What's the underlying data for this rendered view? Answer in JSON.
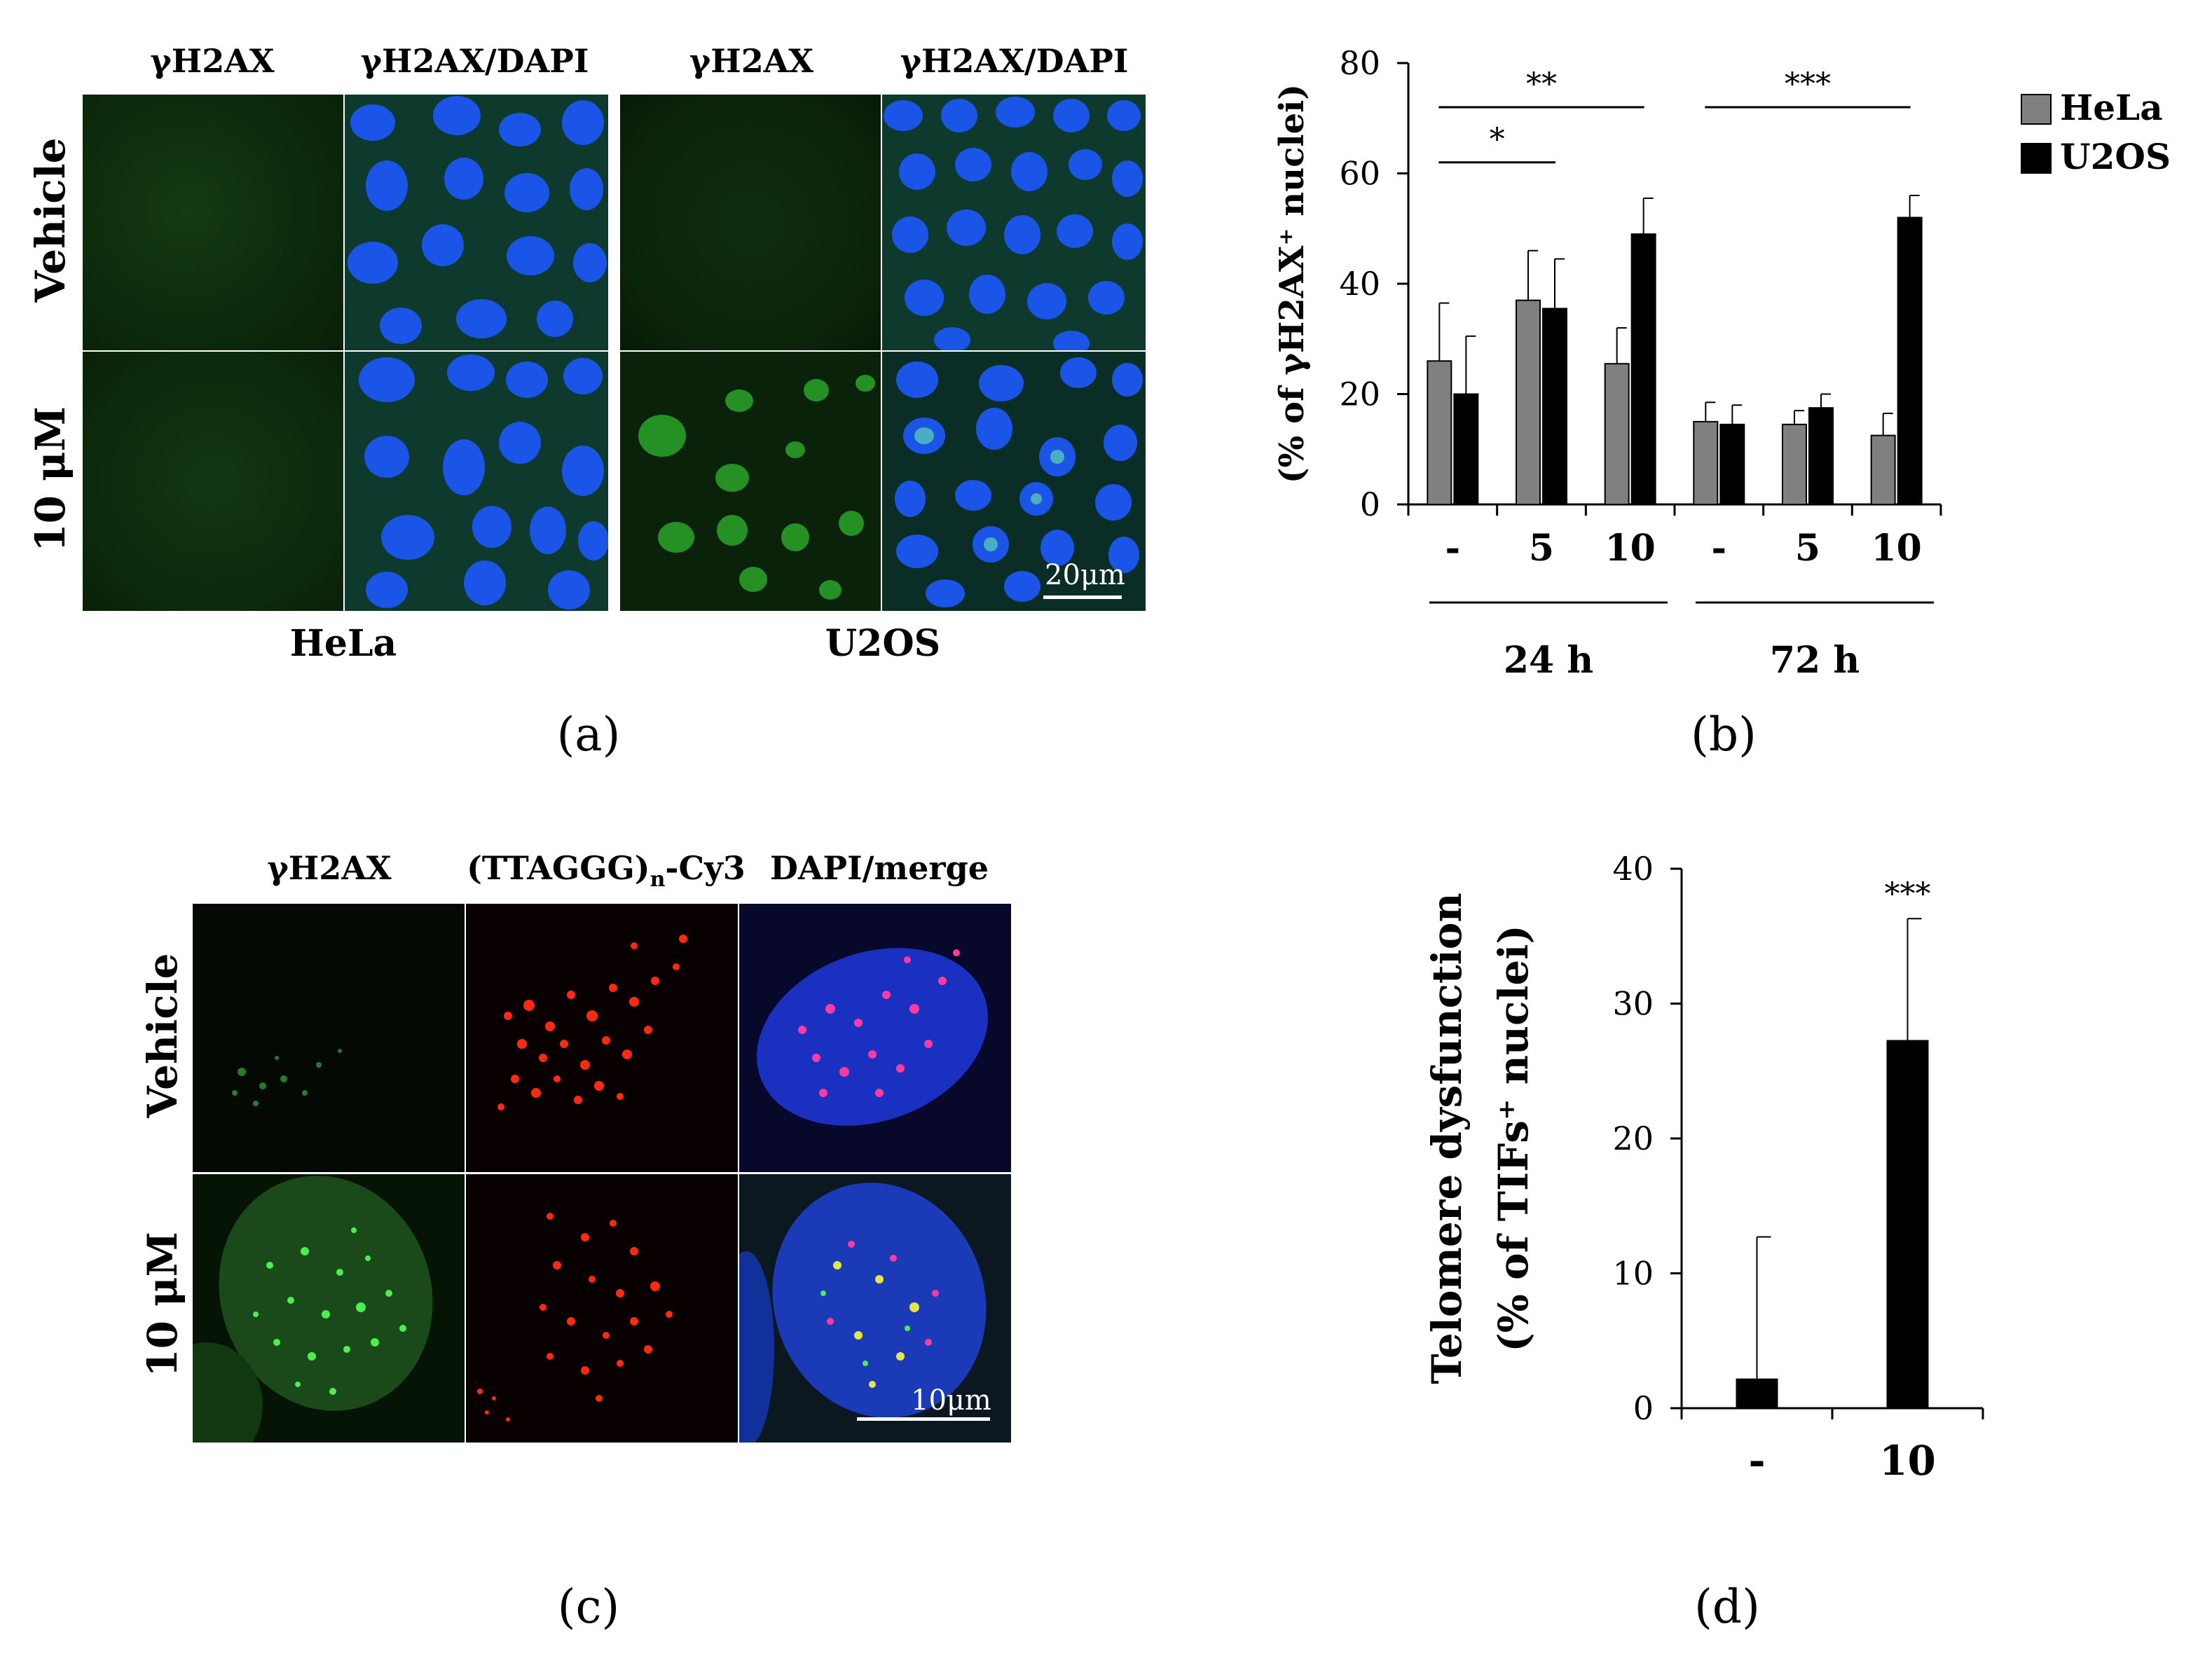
{
  "panel_a": {
    "col_headers": [
      "γH2AX",
      "γH2AX/DAPI",
      "γH2AX",
      "γH2AX/DAPI"
    ],
    "row_labels": [
      "Vehicle",
      "10 μM"
    ],
    "group_labels": [
      "HeLa",
      "U2OS"
    ],
    "scale_bar": "20μm",
    "caption": "(a)"
  },
  "panel_b": {
    "caption": "(b)",
    "timepoints": [
      "24 h",
      "72 h"
    ]
  },
  "panel_c": {
    "col_headers": [
      "γH2AX",
      "(TTAGGG)",
      "n",
      "-Cy3",
      "DAPI/merge"
    ],
    "row_labels": [
      "Vehicle",
      "10 μM"
    ],
    "scale_bar": "10μm",
    "caption": "(c)"
  },
  "panel_d": {
    "caption": "(d)"
  },
  "chart_data": [
    {
      "type": "bar",
      "ylabel": "(% of γH2AX⁺ nuclei)",
      "ylim": [
        0,
        80
      ],
      "yticks": [
        0,
        20,
        40,
        60,
        80
      ],
      "categories": [
        "-",
        "5",
        "10",
        "-",
        "5",
        "10"
      ],
      "groups": [
        "24 h",
        "72 h"
      ],
      "series": [
        {
          "name": "HeLa",
          "color": "#808080",
          "values": [
            26,
            37,
            25.5,
            15,
            14.5,
            12.5
          ],
          "errors": [
            10.5,
            9,
            6.5,
            3.5,
            2.5,
            4
          ]
        },
        {
          "name": "U2OS",
          "color": "#000000",
          "values": [
            20,
            35.5,
            49,
            14.5,
            17.5,
            52
          ],
          "errors": [
            10.5,
            9,
            6.5,
            3.5,
            2.5,
            4
          ]
        }
      ],
      "significance": [
        "*",
        "**",
        "***"
      ],
      "legend": "top-right"
    },
    {
      "type": "bar",
      "ylabel_lines": [
        "Telomere dysfunction",
        "(% of TIFs⁺ nuclei)"
      ],
      "ylim": [
        0,
        40
      ],
      "yticks": [
        0,
        10,
        20,
        30,
        40
      ],
      "categories": [
        "-",
        "10"
      ],
      "values": [
        2.2,
        27.3
      ],
      "errors": [
        10.5,
        9
      ],
      "color": "#000000",
      "significance": [
        "***"
      ]
    }
  ]
}
